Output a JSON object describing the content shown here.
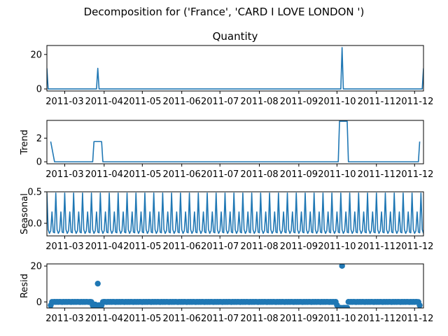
{
  "suptitle": "Decomposition for ('France', 'CARD I LOVE LONDON ')",
  "colors": {
    "line": "#1f77b4",
    "axis": "#000000",
    "background": "#ffffff"
  },
  "x_ticks": [
    "2011-03",
    "2011-04",
    "2011-05",
    "2011-06",
    "2011-07",
    "2011-08",
    "2011-09",
    "2011-10",
    "2011-11",
    "2011-12"
  ],
  "chart_data": [
    {
      "name": "observed",
      "type": "line",
      "title": "Quantity",
      "ylabel": "",
      "x_range": [
        "2011-02-15",
        "2011-12-08"
      ],
      "ylim": [
        -1.2,
        25.2
      ],
      "y_ticks": [
        0,
        20
      ],
      "x": [
        "2011-02-15",
        "2011-02-16",
        "2011-03-26",
        "2011-03-27",
        "2011-03-28",
        "2011-10-04",
        "2011-10-05",
        "2011-10-06",
        "2011-12-07",
        "2011-12-08"
      ],
      "y": [
        12,
        0,
        0,
        12,
        0,
        0,
        24,
        0,
        0,
        12
      ]
    },
    {
      "name": "trend",
      "type": "line",
      "title": "",
      "ylabel": "Trend",
      "x_range": [
        "2011-02-15",
        "2011-12-08"
      ],
      "ylim": [
        -0.17,
        3.5
      ],
      "y_ticks": [
        0,
        2
      ],
      "x": [
        "2011-02-18",
        "2011-02-21",
        "2011-03-23",
        "2011-03-24",
        "2011-03-30",
        "2011-03-31",
        "2011-10-02",
        "2011-10-03",
        "2011-10-09",
        "2011-10-10",
        "2011-12-04",
        "2011-12-05"
      ],
      "y": [
        1.71,
        0,
        0,
        1.71,
        1.71,
        0,
        0,
        3.43,
        3.43,
        0,
        0,
        1.71
      ]
    },
    {
      "name": "seasonal",
      "type": "line",
      "title": "",
      "ylabel": "Seasonal",
      "x_range": [
        "2011-02-15",
        "2011-12-08"
      ],
      "ylim": [
        -0.2,
        0.5
      ],
      "y_ticks": [
        0.0,
        0.5
      ],
      "y_tick_labels": [
        "0.0",
        "0.5"
      ],
      "period_days": 7,
      "start": "2011-02-15",
      "end": "2011-12-08",
      "pattern": [
        0.48,
        -0.1,
        -0.16,
        -0.12,
        0.18,
        -0.14,
        -0.15
      ]
    },
    {
      "name": "resid",
      "type": "scatter",
      "title": "",
      "ylabel": "Resid",
      "x_range": [
        "2011-02-15",
        "2011-12-08"
      ],
      "ylim": [
        -3.4,
        21.2
      ],
      "y_ticks": [
        0,
        20
      ],
      "base_points": {
        "start": "2011-02-18",
        "end": "2011-12-05",
        "step_days": 1,
        "pattern": [
          0.05,
          -0.02,
          -0.08,
          0.04,
          -0.05,
          0.02,
          -0.04
        ]
      },
      "outliers": [
        {
          "x": "2011-02-18",
          "y": -1.9
        },
        {
          "x": "2011-03-23",
          "y": -1.9
        },
        {
          "x": "2011-03-24",
          "y": -1.9
        },
        {
          "x": "2011-03-25",
          "y": -1.5
        },
        {
          "x": "2011-03-26",
          "y": -1.9
        },
        {
          "x": "2011-03-27",
          "y": 10.2
        },
        {
          "x": "2011-03-28",
          "y": -1.8
        },
        {
          "x": "2011-03-29",
          "y": -2.1
        },
        {
          "x": "2011-03-30",
          "y": -1.9
        },
        {
          "x": "2011-10-01",
          "y": -1.8
        },
        {
          "x": "2011-10-02",
          "y": -3.3
        },
        {
          "x": "2011-10-03",
          "y": -3.3
        },
        {
          "x": "2011-10-04",
          "y": -3.3
        },
        {
          "x": "2011-10-05",
          "y": 20.1
        },
        {
          "x": "2011-10-06",
          "y": -3.3
        },
        {
          "x": "2011-10-07",
          "y": -3.3
        },
        {
          "x": "2011-10-08",
          "y": -3.3
        },
        {
          "x": "2011-10-09",
          "y": -3.3
        },
        {
          "x": "2011-12-05",
          "y": -1.9
        }
      ]
    }
  ]
}
